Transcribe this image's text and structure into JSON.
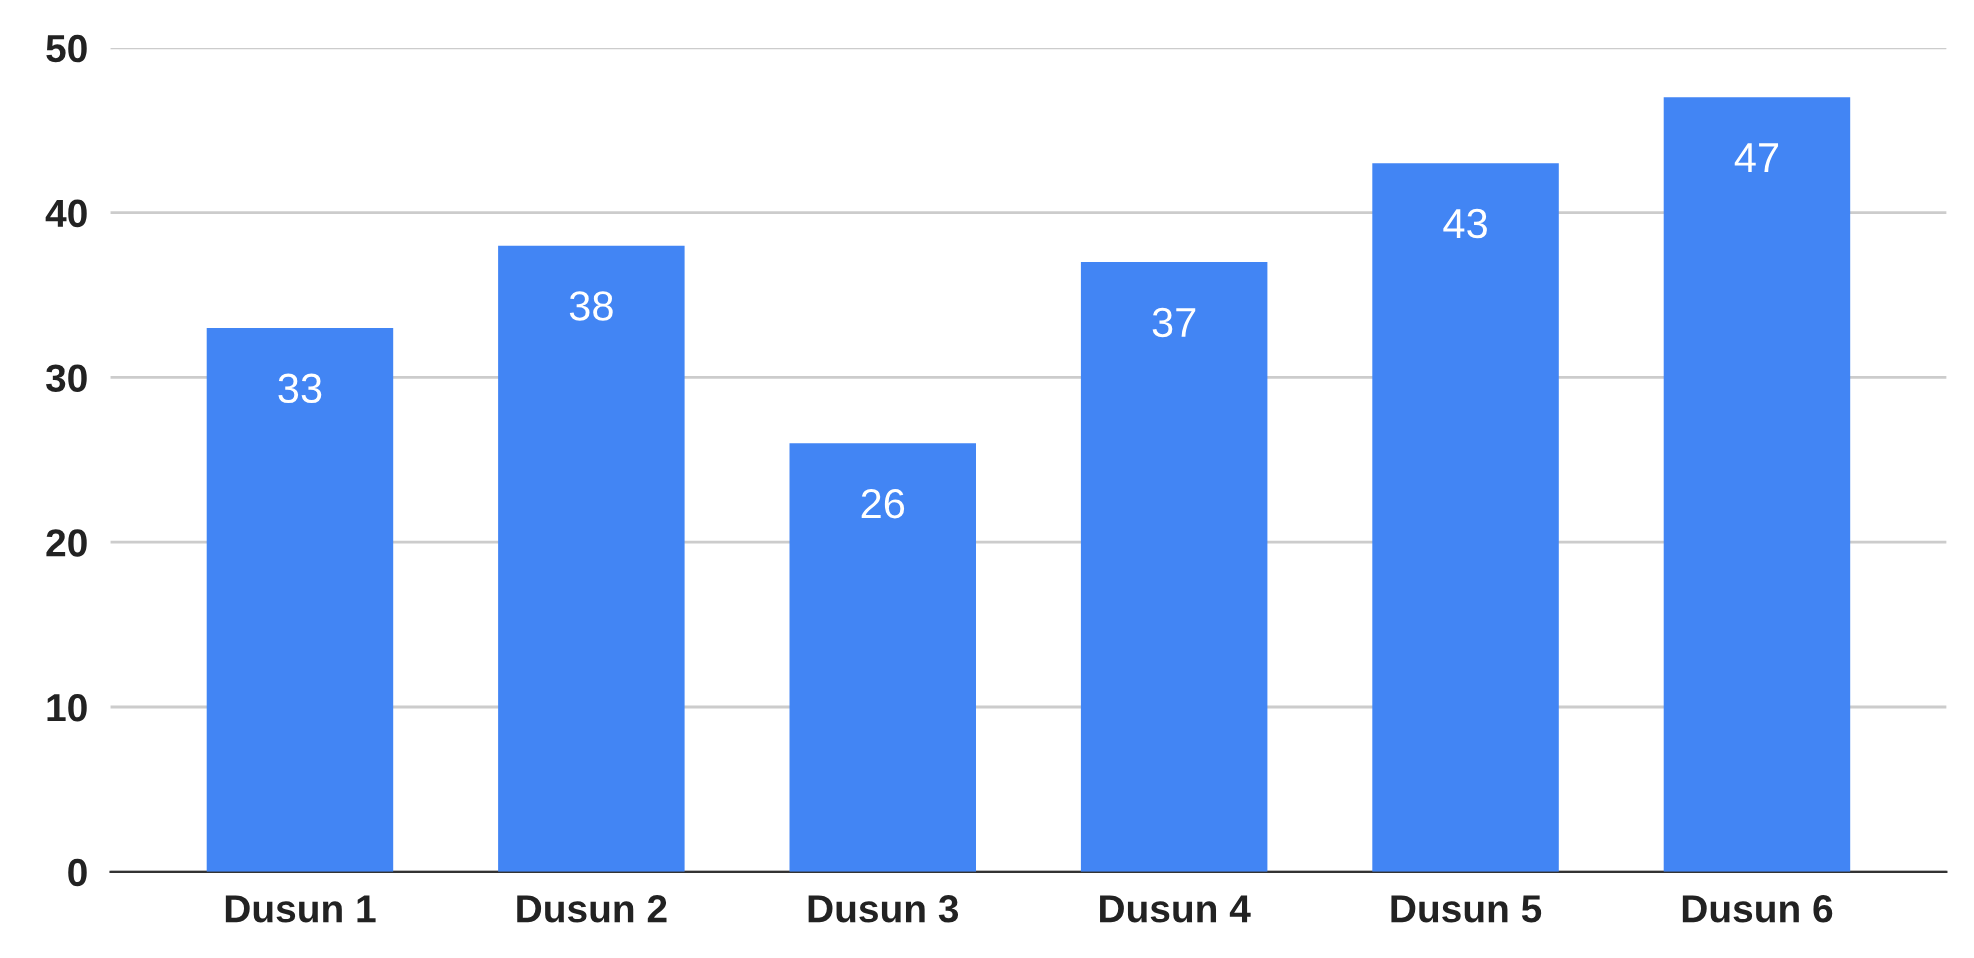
{
  "chart_data": {
    "type": "bar",
    "categories": [
      "Dusun 1",
      "Dusun 2",
      "Dusun 3",
      "Dusun 4",
      "Dusun 5",
      "Dusun 6"
    ],
    "values": [
      33,
      38,
      26,
      37,
      43,
      47
    ],
    "color": "#4285f4",
    "ylim": [
      0,
      50
    ],
    "yticks": [
      0,
      10,
      20,
      30,
      40,
      50
    ],
    "grid": "y",
    "data_labels": true
  }
}
